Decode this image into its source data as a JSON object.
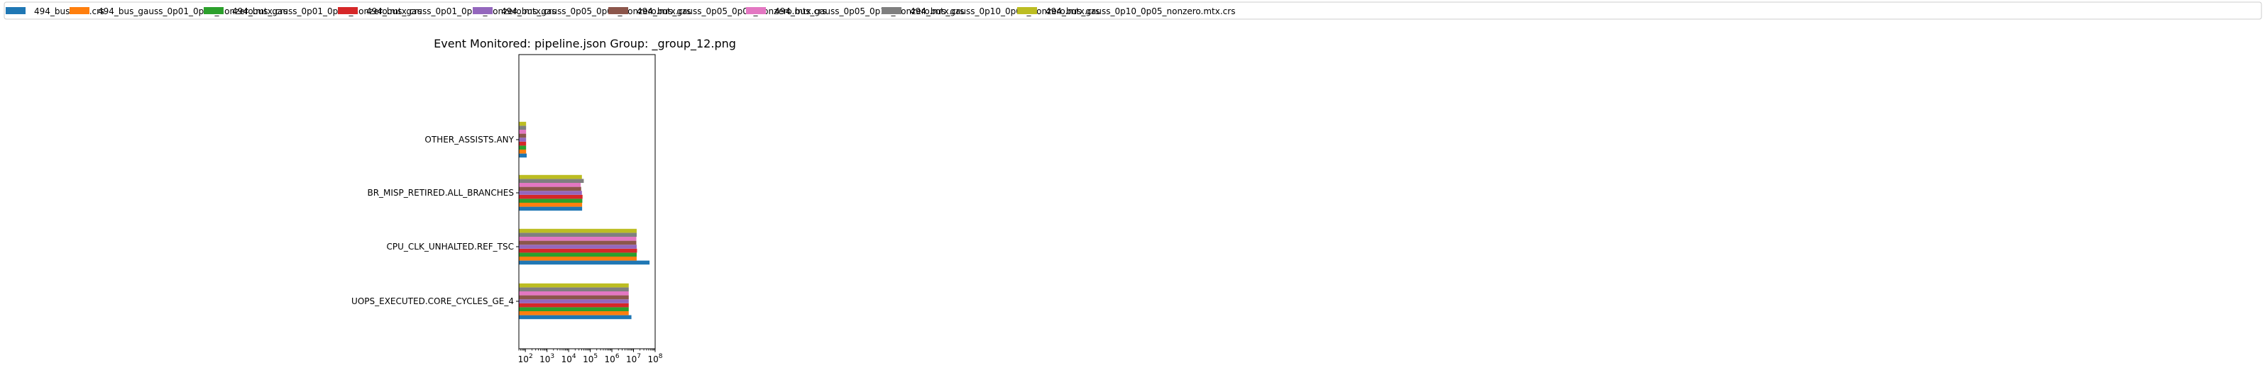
{
  "chart_data": {
    "type": "bar",
    "orientation": "horizontal",
    "title": "Event Monitored: pipeline.json Group: _group_12.png",
    "xscale": "log",
    "xlim": [
      50,
      100000000
    ],
    "xticks": [
      {
        "value": 100,
        "base": "10",
        "exp": "2"
      },
      {
        "value": 1000,
        "base": "10",
        "exp": "3"
      },
      {
        "value": 10000,
        "base": "10",
        "exp": "4"
      },
      {
        "value": 100000,
        "base": "10",
        "exp": "5"
      },
      {
        "value": 1000000,
        "base": "10",
        "exp": "6"
      },
      {
        "value": 10000000,
        "base": "10",
        "exp": "7"
      },
      {
        "value": 100000000,
        "base": "10",
        "exp": "8"
      }
    ],
    "categories": [
      "UOPS_EXECUTED.CORE_CYCLES_GE_4",
      "CPU_CLK_UNHALTED.REF_TSC",
      "BR_MISP_RETIRED.ALL_BRANCHES",
      "OTHER_ASSISTS.ANY"
    ],
    "legend_position": "top",
    "series": [
      {
        "name": "494_bus.mtx.crs",
        "color": "#1f77b4",
        "values": [
          8000000,
          55000000,
          42000,
          115
        ]
      },
      {
        "name": "494_bus_gauss_0p01_0p01_nonzero.mtx.crs",
        "color": "#ff7f0e",
        "values": [
          6000000,
          14000000,
          42000,
          108
        ]
      },
      {
        "name": "494_bus_gauss_0p01_0p05_nonzero.mtx.crs",
        "color": "#2ca02c",
        "values": [
          6000000,
          14000000,
          43000,
          108
        ]
      },
      {
        "name": "494_bus_gauss_0p01_0p10_nonzero.mtx.crs",
        "color": "#d62728",
        "values": [
          6000000,
          14500000,
          44000,
          108
        ]
      },
      {
        "name": "494_bus_gauss_0p05_0p01_nonzero.mtx.crs",
        "color": "#9467bd",
        "values": [
          6000000,
          14000000,
          41000,
          108
        ]
      },
      {
        "name": "494_bus_gauss_0p05_0p05_nonzero.mtx.crs",
        "color": "#8c564b",
        "values": [
          6000000,
          13500000,
          38000,
          108
        ]
      },
      {
        "name": "494_bus_gauss_0p05_0p10_nonzero.mtx.crs",
        "color": "#e377c2",
        "values": [
          6000000,
          13500000,
          36000,
          108
        ]
      },
      {
        "name": "494_bus_gauss_0p10_0p01_nonzero.mtx.crs",
        "color": "#7f7f7f",
        "values": [
          6000000,
          14000000,
          50000,
          108
        ]
      },
      {
        "name": "494_bus_gauss_0p10_0p05_nonzero.mtx.crs",
        "color": "#bcbd22",
        "values": [
          6000000,
          14000000,
          41000,
          108
        ]
      }
    ]
  }
}
